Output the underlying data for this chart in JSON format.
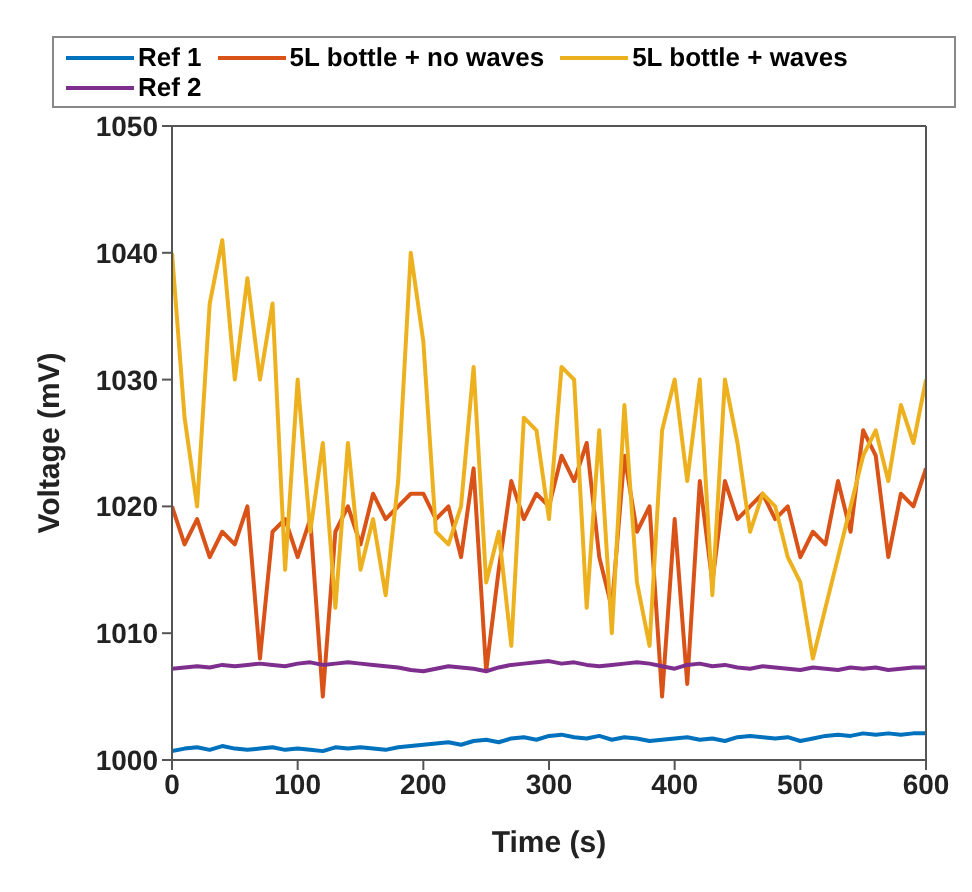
{
  "chart_data": {
    "type": "line",
    "xlabel": "Time (s)",
    "ylabel": "Voltage (mV)",
    "x": [
      0,
      10,
      20,
      30,
      40,
      50,
      60,
      70,
      80,
      90,
      100,
      110,
      120,
      130,
      140,
      150,
      160,
      170,
      180,
      190,
      200,
      210,
      220,
      230,
      240,
      250,
      260,
      270,
      280,
      290,
      300,
      310,
      320,
      330,
      340,
      350,
      360,
      370,
      380,
      390,
      400,
      410,
      420,
      430,
      440,
      450,
      460,
      470,
      480,
      490,
      500,
      510,
      520,
      530,
      540,
      550,
      560,
      570,
      580,
      590,
      600
    ],
    "xlim": [
      0,
      600
    ],
    "xticks": [
      0,
      100,
      200,
      300,
      400,
      500,
      600
    ],
    "ylim": [
      1000,
      1050
    ],
    "yticks": [
      1000,
      1010,
      1020,
      1030,
      1040,
      1050
    ],
    "grid": false,
    "legend": "top",
    "marker": "none",
    "line_style": "solid",
    "series": [
      {
        "name": "Ref 1",
        "color": "#0072bd",
        "values": [
          1000.7,
          1000.9,
          1001.0,
          1000.8,
          1001.1,
          1000.9,
          1000.8,
          1000.9,
          1001.0,
          1000.8,
          1000.9,
          1000.8,
          1000.7,
          1001.0,
          1000.9,
          1001.0,
          1000.9,
          1000.8,
          1001.0,
          1001.1,
          1001.2,
          1001.3,
          1001.4,
          1001.2,
          1001.5,
          1001.6,
          1001.4,
          1001.7,
          1001.8,
          1001.6,
          1001.9,
          1002.0,
          1001.8,
          1001.7,
          1001.9,
          1001.6,
          1001.8,
          1001.7,
          1001.5,
          1001.6,
          1001.7,
          1001.8,
          1001.6,
          1001.7,
          1001.5,
          1001.8,
          1001.9,
          1001.8,
          1001.7,
          1001.8,
          1001.5,
          1001.7,
          1001.9,
          1002.0,
          1001.9,
          1002.1,
          1002.0,
          1002.1,
          1002.0,
          1002.1,
          1002.1
        ]
      },
      {
        "name": "5L bottle + no waves",
        "color": "#d95319",
        "values": [
          1020,
          1017,
          1019,
          1016,
          1018,
          1017,
          1020,
          1008,
          1018,
          1019,
          1016,
          1019,
          1005,
          1018,
          1020,
          1017,
          1021,
          1019,
          1020,
          1021,
          1021,
          1019,
          1020,
          1016,
          1023,
          1007,
          1015,
          1022,
          1019,
          1021,
          1020,
          1024,
          1022,
          1025,
          1016,
          1012,
          1024,
          1018,
          1020,
          1005,
          1019,
          1006,
          1022,
          1014,
          1022,
          1019,
          1020,
          1021,
          1019,
          1020,
          1016,
          1018,
          1017,
          1022,
          1018,
          1026,
          1024,
          1016,
          1021,
          1020,
          1023
        ]
      },
      {
        "name": "5L bottle + waves",
        "color": "#edb120",
        "values": [
          1040,
          1027,
          1020,
          1036,
          1041,
          1030,
          1038,
          1030,
          1036,
          1015,
          1030,
          1018,
          1025,
          1012,
          1025,
          1015,
          1019,
          1013,
          1022,
          1040,
          1033,
          1018,
          1017,
          1020,
          1031,
          1014,
          1018,
          1009,
          1027,
          1026,
          1019,
          1031,
          1030,
          1012,
          1026,
          1010,
          1028,
          1014,
          1009,
          1026,
          1030,
          1022,
          1030,
          1013,
          1030,
          1025,
          1018,
          1021,
          1020,
          1016,
          1014,
          1008,
          1012,
          1016,
          1020,
          1024,
          1026,
          1022,
          1028,
          1025,
          1030
        ]
      },
      {
        "name": "Ref 2",
        "color": "#7e2f8e",
        "values": [
          1007.2,
          1007.3,
          1007.4,
          1007.3,
          1007.5,
          1007.4,
          1007.5,
          1007.6,
          1007.5,
          1007.4,
          1007.6,
          1007.7,
          1007.5,
          1007.6,
          1007.7,
          1007.6,
          1007.5,
          1007.4,
          1007.3,
          1007.1,
          1007.0,
          1007.2,
          1007.4,
          1007.3,
          1007.2,
          1007.0,
          1007.3,
          1007.5,
          1007.6,
          1007.7,
          1007.8,
          1007.6,
          1007.7,
          1007.5,
          1007.4,
          1007.5,
          1007.6,
          1007.7,
          1007.6,
          1007.4,
          1007.2,
          1007.5,
          1007.6,
          1007.4,
          1007.5,
          1007.3,
          1007.2,
          1007.4,
          1007.3,
          1007.2,
          1007.1,
          1007.3,
          1007.2,
          1007.1,
          1007.3,
          1007.2,
          1007.3,
          1007.1,
          1007.2,
          1007.3,
          1007.3
        ]
      }
    ]
  }
}
